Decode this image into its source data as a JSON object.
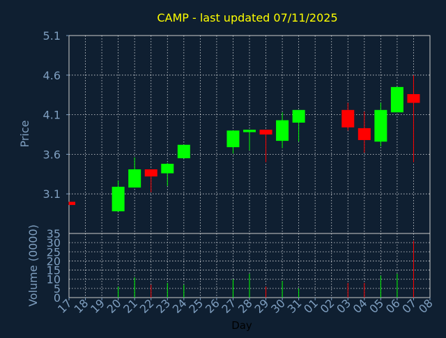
{
  "chart_data": {
    "type": "candlestick",
    "title": "CAMP - last updated 07/11/2025",
    "xlabel": "Day",
    "ylabel_price": "Price",
    "ylabel_volume": "Volume (0000)",
    "price_ylim": [
      2.6,
      5.1
    ],
    "price_ticks": [
      "3.1",
      "3.6",
      "4.1",
      "4.6",
      "5.1"
    ],
    "volume_ylim": [
      0,
      35
    ],
    "volume_ticks": [
      "0",
      "5",
      "10",
      "15",
      "20",
      "25",
      "30",
      "35"
    ],
    "days": [
      "17",
      "18",
      "19",
      "20",
      "21",
      "22",
      "23",
      "24",
      "25",
      "26",
      "27",
      "28",
      "29",
      "30",
      "31",
      "01",
      "02",
      "03",
      "04",
      "05",
      "06",
      "07",
      "08"
    ],
    "candles": [
      {
        "day": "17",
        "open": 3.0,
        "high": 3.0,
        "low": 2.96,
        "close": 2.96,
        "volume": 0
      },
      {
        "day": "20",
        "open": 2.88,
        "high": 3.27,
        "low": 2.88,
        "close": 3.19,
        "volume": 6
      },
      {
        "day": "21",
        "open": 3.18,
        "high": 3.56,
        "low": 3.18,
        "close": 3.41,
        "volume": 11
      },
      {
        "day": "22",
        "open": 3.41,
        "high": 3.41,
        "low": 3.12,
        "close": 3.32,
        "volume": 7
      },
      {
        "day": "23",
        "open": 3.36,
        "high": 3.49,
        "low": 3.2,
        "close": 3.48,
        "volume": 8
      },
      {
        "day": "24",
        "open": 3.55,
        "high": 3.72,
        "low": 3.55,
        "close": 3.72,
        "volume": 7
      },
      {
        "day": "27",
        "open": 3.69,
        "high": 3.9,
        "low": 3.61,
        "close": 3.9,
        "volume": 10
      },
      {
        "day": "28",
        "open": 3.88,
        "high": 3.91,
        "low": 3.65,
        "close": 3.91,
        "volume": 13
      },
      {
        "day": "29",
        "open": 3.91,
        "high": 3.91,
        "low": 3.5,
        "close": 3.85,
        "volume": 6
      },
      {
        "day": "30",
        "open": 3.77,
        "high": 4.13,
        "low": 3.68,
        "close": 4.03,
        "volume": 9
      },
      {
        "day": "31",
        "open": 4.0,
        "high": 4.16,
        "low": 3.76,
        "close": 4.16,
        "volume": 5
      },
      {
        "day": "03",
        "open": 4.16,
        "high": 4.25,
        "low": 3.9,
        "close": 3.94,
        "volume": 8
      },
      {
        "day": "04",
        "open": 3.93,
        "high": 4.14,
        "low": 3.62,
        "close": 3.78,
        "volume": 8
      },
      {
        "day": "05",
        "open": 3.76,
        "high": 4.25,
        "low": 3.7,
        "close": 4.16,
        "volume": 12
      },
      {
        "day": "06",
        "open": 4.13,
        "high": 4.45,
        "low": 4.13,
        "close": 4.45,
        "volume": 13
      },
      {
        "day": "07",
        "open": 4.36,
        "high": 4.6,
        "low": 3.5,
        "close": 4.25,
        "volume": 31
      }
    ],
    "colors": {
      "up": "#00ff00",
      "down": "#ff0000",
      "background": "#0f1f31",
      "axis_text": "#7f9fc0",
      "title": "#ffff00",
      "grid": "#ffffff"
    },
    "grid": true
  }
}
